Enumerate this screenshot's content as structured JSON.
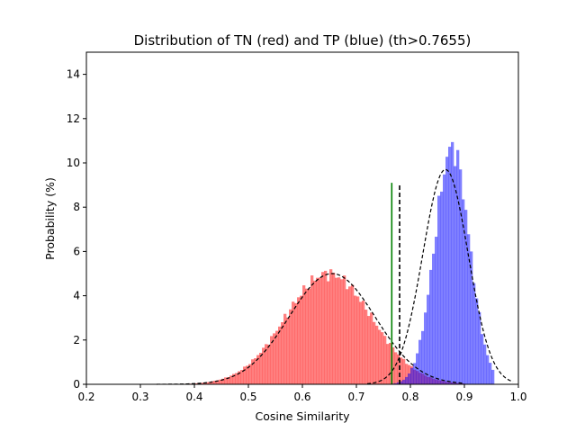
{
  "chart_data": {
    "type": "histogram",
    "title": "Distribution of TN (red) and TP (blue) (th>0.7655)",
    "xlabel": "Cosine Similarity",
    "ylabel": "Probability (%)",
    "xlim": [
      0.2,
      1.0
    ],
    "ylim": [
      0,
      15
    ],
    "xticks": [
      "0.2",
      "0.3",
      "0.4",
      "0.5",
      "0.6",
      "0.7",
      "0.8",
      "0.9",
      "1.0"
    ],
    "yticks": [
      "0",
      "2",
      "4",
      "6",
      "8",
      "10",
      "12",
      "14"
    ],
    "bin_width": 0.005,
    "grid": false,
    "series": [
      {
        "color": "#ff0000",
        "opacity": 0.5,
        "range": [
          0.33,
          0.9
        ],
        "mean": 0.648,
        "sd": 0.08,
        "peak": 5.0
      },
      {
        "color": "#0000ff",
        "opacity": 0.5,
        "range": [
          0.72,
          0.955
        ],
        "mean": 0.877,
        "sd": 0.032,
        "peak": 10.7
      }
    ],
    "fit_curves": [
      {
        "color": "#000000",
        "style": "dashed",
        "mean": 0.655,
        "sd": 0.08,
        "peak": 5.0,
        "x_range": [
          0.33,
          0.9
        ]
      },
      {
        "color": "#000000",
        "style": "dashed",
        "mean": 0.865,
        "sd": 0.042,
        "peak": 9.7,
        "x_range": [
          0.72,
          0.99
        ]
      }
    ],
    "vlines": [
      {
        "x": 0.7655,
        "height": 9.1,
        "color": "#008000",
        "style": "solid"
      },
      {
        "x": 0.78,
        "height": 9.1,
        "color": "#000000",
        "style": "dashed"
      }
    ]
  }
}
